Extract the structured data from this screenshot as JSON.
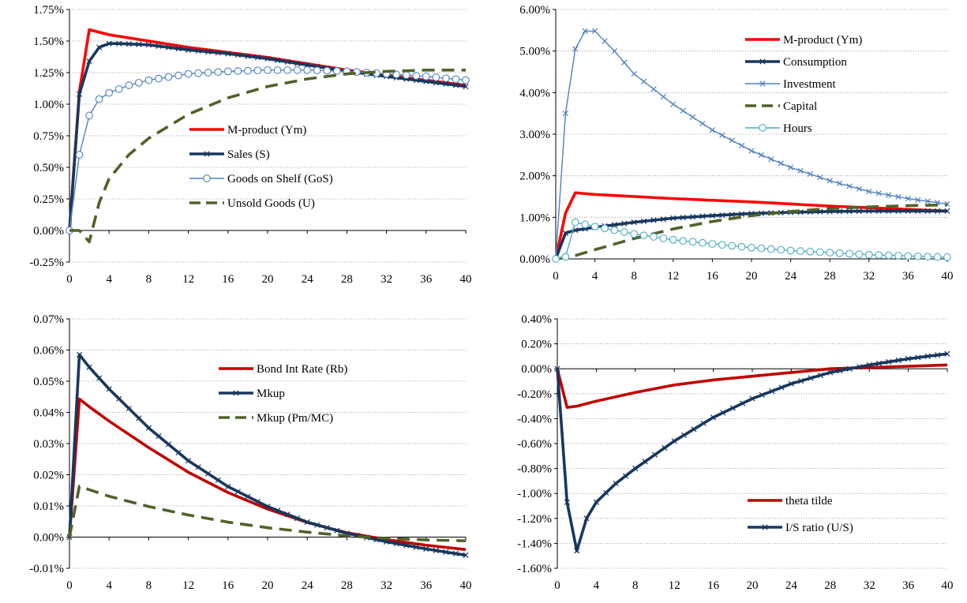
{
  "chart_data": [
    {
      "type": "line",
      "title": "",
      "xlabel": "",
      "ylabel": "",
      "xlim": [
        0,
        40
      ],
      "ylim": [
        -0.25,
        1.75
      ],
      "y_ticks": [
        -0.25,
        0.0,
        0.25,
        0.5,
        0.75,
        1.0,
        1.25,
        1.5,
        1.75
      ],
      "y_tick_labels": [
        "-0.25%",
        "0.00%",
        "0.25%",
        "0.50%",
        "0.75%",
        "1.00%",
        "1.25%",
        "1.50%",
        "1.75%"
      ],
      "x_ticks": [
        0,
        4,
        8,
        12,
        16,
        20,
        24,
        28,
        32,
        36,
        40
      ],
      "x_tick_labels": [
        "0",
        "4",
        "8",
        "12",
        "16",
        "20",
        "24",
        "28",
        "32",
        "36",
        "40"
      ],
      "grid": "horizontal-dotted",
      "legend_placement": "center-right",
      "series": [
        {
          "name": "M-product (Ym)",
          "color": "#ff0000",
          "style": "solid-thick",
          "x": [
            0,
            1,
            2,
            4,
            8,
            12,
            16,
            20,
            24,
            28,
            32,
            36,
            40
          ],
          "values": [
            0,
            1.1,
            1.59,
            1.55,
            1.5,
            1.45,
            1.41,
            1.37,
            1.32,
            1.27,
            1.23,
            1.19,
            1.15
          ]
        },
        {
          "name": "Sales (S)",
          "color": "#17375e",
          "style": "solid-thick-x",
          "x": [
            0,
            1,
            2,
            3,
            4,
            5,
            8,
            12,
            16,
            20,
            24,
            28,
            32,
            36,
            40
          ],
          "values": [
            0,
            1.08,
            1.34,
            1.45,
            1.48,
            1.48,
            1.47,
            1.43,
            1.4,
            1.36,
            1.31,
            1.26,
            1.22,
            1.18,
            1.14
          ]
        },
        {
          "name": "Goods on Shelf (GoS)",
          "color": "#4f81bd",
          "style": "thin-circle",
          "x": [
            0,
            1,
            2,
            3,
            4,
            6,
            8,
            12,
            16,
            20,
            24,
            28,
            32,
            36,
            40
          ],
          "values": [
            0,
            0.6,
            0.91,
            1.04,
            1.09,
            1.15,
            1.19,
            1.24,
            1.26,
            1.27,
            1.27,
            1.26,
            1.24,
            1.22,
            1.19
          ]
        },
        {
          "name": "Unsold Goods (U)",
          "color": "#4f6228",
          "style": "dashed-thick",
          "x": [
            0,
            1,
            2,
            3,
            4,
            6,
            8,
            12,
            16,
            20,
            24,
            28,
            32,
            36,
            40
          ],
          "values": [
            0,
            0.0,
            -0.09,
            0.22,
            0.41,
            0.6,
            0.73,
            0.92,
            1.05,
            1.14,
            1.2,
            1.24,
            1.26,
            1.27,
            1.27
          ]
        }
      ]
    },
    {
      "type": "line",
      "title": "",
      "xlabel": "",
      "ylabel": "",
      "xlim": [
        0,
        40
      ],
      "ylim": [
        0.0,
        6.0
      ],
      "y_ticks": [
        0.0,
        1.0,
        2.0,
        3.0,
        4.0,
        5.0,
        6.0
      ],
      "y_tick_labels": [
        "0.00%",
        "1.00%",
        "2.00%",
        "3.00%",
        "4.00%",
        "5.00%",
        "6.00%"
      ],
      "x_ticks": [
        0,
        4,
        8,
        12,
        16,
        20,
        24,
        28,
        32,
        36,
        40
      ],
      "x_tick_labels": [
        "0",
        "4",
        "8",
        "12",
        "16",
        "20",
        "24",
        "28",
        "32",
        "36",
        "40"
      ],
      "grid": "horizontal-dotted",
      "legend_placement": "top-right",
      "series": [
        {
          "name": "M-product (Ym)",
          "color": "#ff0000",
          "style": "solid-thick",
          "x": [
            0,
            1,
            2,
            4,
            8,
            12,
            16,
            20,
            24,
            28,
            32,
            36,
            40
          ],
          "values": [
            0,
            1.1,
            1.59,
            1.55,
            1.5,
            1.45,
            1.41,
            1.37,
            1.32,
            1.27,
            1.23,
            1.19,
            1.15
          ]
        },
        {
          "name": "Consumption",
          "color": "#17375e",
          "style": "solid-thick-x",
          "x": [
            0,
            1,
            2,
            4,
            8,
            12,
            16,
            20,
            24,
            28,
            32,
            36,
            40
          ],
          "values": [
            0,
            0.62,
            0.69,
            0.76,
            0.88,
            0.98,
            1.04,
            1.09,
            1.12,
            1.14,
            1.15,
            1.15,
            1.15
          ]
        },
        {
          "name": "Investment",
          "color": "#4f81bd",
          "style": "thin-x",
          "x": [
            0,
            1,
            2,
            3,
            4,
            6,
            8,
            12,
            16,
            20,
            24,
            28,
            32,
            36,
            40
          ],
          "values": [
            0,
            3.5,
            5.05,
            5.48,
            5.48,
            5.0,
            4.45,
            3.72,
            3.1,
            2.6,
            2.2,
            1.88,
            1.62,
            1.45,
            1.32
          ]
        },
        {
          "name": "Capital",
          "color": "#4f6228",
          "style": "dashed-thick",
          "x": [
            0,
            1,
            2,
            4,
            8,
            12,
            16,
            20,
            24,
            28,
            32,
            36,
            40
          ],
          "values": [
            0,
            0.03,
            0.08,
            0.22,
            0.49,
            0.72,
            0.9,
            1.04,
            1.14,
            1.21,
            1.25,
            1.28,
            1.3
          ]
        },
        {
          "name": "Hours",
          "color": "#4bacc6",
          "style": "thin-circle",
          "x": [
            0,
            1,
            2,
            4,
            8,
            12,
            16,
            20,
            24,
            28,
            32,
            36,
            40
          ],
          "values": [
            0,
            0.05,
            0.88,
            0.78,
            0.6,
            0.46,
            0.36,
            0.27,
            0.2,
            0.15,
            0.1,
            0.07,
            0.04
          ]
        }
      ]
    },
    {
      "type": "line",
      "title": "",
      "xlabel": "",
      "ylabel": "",
      "xlim": [
        0,
        40
      ],
      "ylim": [
        -0.01,
        0.07
      ],
      "y_ticks": [
        -0.01,
        0.0,
        0.01,
        0.02,
        0.03,
        0.04,
        0.05,
        0.06,
        0.07
      ],
      "y_tick_labels": [
        "-0.01%",
        "0.00%",
        "0.01%",
        "0.02%",
        "0.03%",
        "0.04%",
        "0.05%",
        "0.06%",
        "0.07%"
      ],
      "x_ticks": [
        0,
        4,
        8,
        12,
        16,
        20,
        24,
        28,
        32,
        36,
        40
      ],
      "x_tick_labels": [
        "0",
        "4",
        "8",
        "12",
        "16",
        "20",
        "24",
        "28",
        "32",
        "36",
        "40"
      ],
      "grid": "horizontal-dotted",
      "legend_placement": "top-right",
      "series": [
        {
          "name": "Bond Int Rate (Rb)",
          "color": "#c00000",
          "style": "solid-thick",
          "x": [
            0,
            1,
            2,
            4,
            8,
            12,
            16,
            20,
            24,
            28,
            32,
            36,
            40
          ],
          "values": [
            0,
            0.0443,
            0.0418,
            0.0372,
            0.0287,
            0.0208,
            0.0143,
            0.009,
            0.0047,
            0.0014,
            -0.0008,
            -0.0026,
            -0.004
          ]
        },
        {
          "name": "Mkup",
          "color": "#17375e",
          "style": "solid-thick-x",
          "x": [
            0,
            1,
            2,
            4,
            8,
            12,
            16,
            20,
            24,
            28,
            32,
            36,
            40
          ],
          "values": [
            0,
            0.0585,
            0.0545,
            0.0475,
            0.035,
            0.0245,
            0.0162,
            0.0098,
            0.0048,
            0.0012,
            -0.0015,
            -0.0038,
            -0.0058
          ]
        },
        {
          "name": "Mkup (Pm/MC)",
          "color": "#4f6228",
          "style": "dashed-thick",
          "x": [
            0,
            1,
            2,
            4,
            8,
            12,
            16,
            20,
            24,
            28,
            32,
            36,
            40
          ],
          "values": [
            0,
            0.0163,
            0.0152,
            0.0131,
            0.0098,
            0.0071,
            0.0048,
            0.003,
            0.0016,
            0.0004,
            -0.0004,
            -0.0009,
            -0.0012
          ]
        }
      ]
    },
    {
      "type": "line",
      "title": "",
      "xlabel": "",
      "ylabel": "",
      "xlim": [
        0,
        40
      ],
      "ylim": [
        -1.6,
        0.4
      ],
      "y_ticks": [
        -1.6,
        -1.4,
        -1.2,
        -1.0,
        -0.8,
        -0.6,
        -0.4,
        -0.2,
        0.0,
        0.2,
        0.4
      ],
      "y_tick_labels": [
        "-1.60%",
        "-1.40%",
        "-1.20%",
        "-1.00%",
        "-0.80%",
        "-0.60%",
        "-0.40%",
        "-0.20%",
        "0.00%",
        "0.20%",
        "0.40%"
      ],
      "x_ticks": [
        0,
        4,
        8,
        12,
        16,
        20,
        24,
        28,
        32,
        36,
        40
      ],
      "x_tick_labels": [
        "0",
        "4",
        "8",
        "12",
        "16",
        "20",
        "24",
        "28",
        "32",
        "36",
        "40"
      ],
      "grid": "horizontal-dotted",
      "legend_placement": "bottom-right",
      "series": [
        {
          "name": "theta tilde",
          "color": "#c00000",
          "style": "solid-thick",
          "x": [
            0,
            1,
            2,
            4,
            8,
            12,
            16,
            20,
            24,
            28,
            32,
            36,
            40
          ],
          "values": [
            0,
            -0.31,
            -0.3,
            -0.26,
            -0.19,
            -0.13,
            -0.09,
            -0.06,
            -0.03,
            0.0,
            0.01,
            0.02,
            0.03
          ]
        },
        {
          "name": "I/S ratio (U/S)",
          "color": "#17375e",
          "style": "solid-thick-x",
          "x": [
            0,
            1,
            2,
            3,
            4,
            6,
            8,
            12,
            16,
            20,
            24,
            28,
            32,
            36,
            40
          ],
          "values": [
            0,
            -1.07,
            -1.46,
            -1.2,
            -1.07,
            -0.92,
            -0.8,
            -0.58,
            -0.39,
            -0.24,
            -0.12,
            -0.03,
            0.03,
            0.08,
            0.12
          ]
        }
      ]
    }
  ]
}
